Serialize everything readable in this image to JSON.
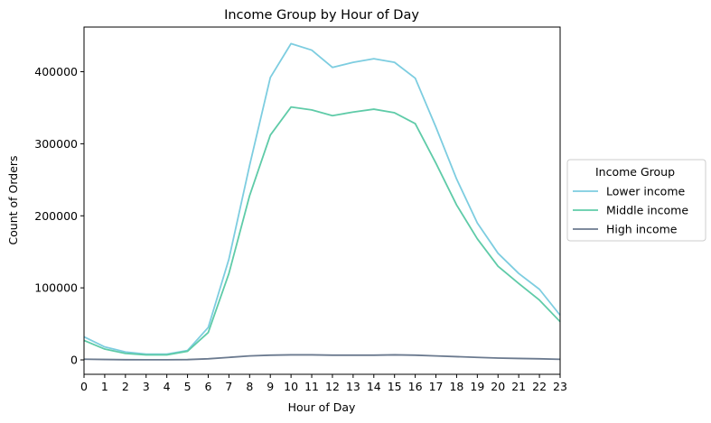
{
  "chart_data": {
    "type": "line",
    "title": "Income Group by Hour of Day",
    "xlabel": "Hour of Day",
    "ylabel": "Count of Orders",
    "x": [
      0,
      1,
      2,
      3,
      4,
      5,
      6,
      7,
      8,
      9,
      10,
      11,
      12,
      13,
      14,
      15,
      16,
      17,
      18,
      19,
      20,
      21,
      22,
      23
    ],
    "xlim": [
      0,
      23
    ],
    "ylim": [
      -20000,
      462000
    ],
    "yticks": [
      0,
      100000,
      200000,
      300000,
      400000
    ],
    "grid": false,
    "legend": {
      "title": "Income Group",
      "placement": "center-right-outside"
    },
    "series": [
      {
        "name": "Lower income",
        "color": "#7dcde0",
        "values": [
          32000,
          18000,
          11000,
          8000,
          8000,
          13000,
          45000,
          140000,
          270000,
          392000,
          439000,
          430000,
          406000,
          413000,
          418000,
          413000,
          391000,
          323000,
          251000,
          190000,
          148000,
          120000,
          98000,
          62000
        ]
      },
      {
        "name": "Middle income",
        "color": "#5fcba8",
        "values": [
          27000,
          15000,
          9000,
          7000,
          7000,
          12000,
          38000,
          120000,
          228000,
          312000,
          351000,
          347000,
          339000,
          344000,
          348000,
          343000,
          328000,
          273000,
          215000,
          168000,
          130000,
          106000,
          83000,
          53000
        ]
      },
      {
        "name": "High income",
        "color": "#6b7a8f",
        "values": [
          1000,
          600,
          300,
          200,
          200,
          400,
          1500,
          3500,
          5500,
          6500,
          7000,
          7000,
          6500,
          6500,
          6500,
          7000,
          6500,
          5500,
          4500,
          3500,
          2500,
          2000,
          1500,
          800
        ]
      }
    ]
  }
}
